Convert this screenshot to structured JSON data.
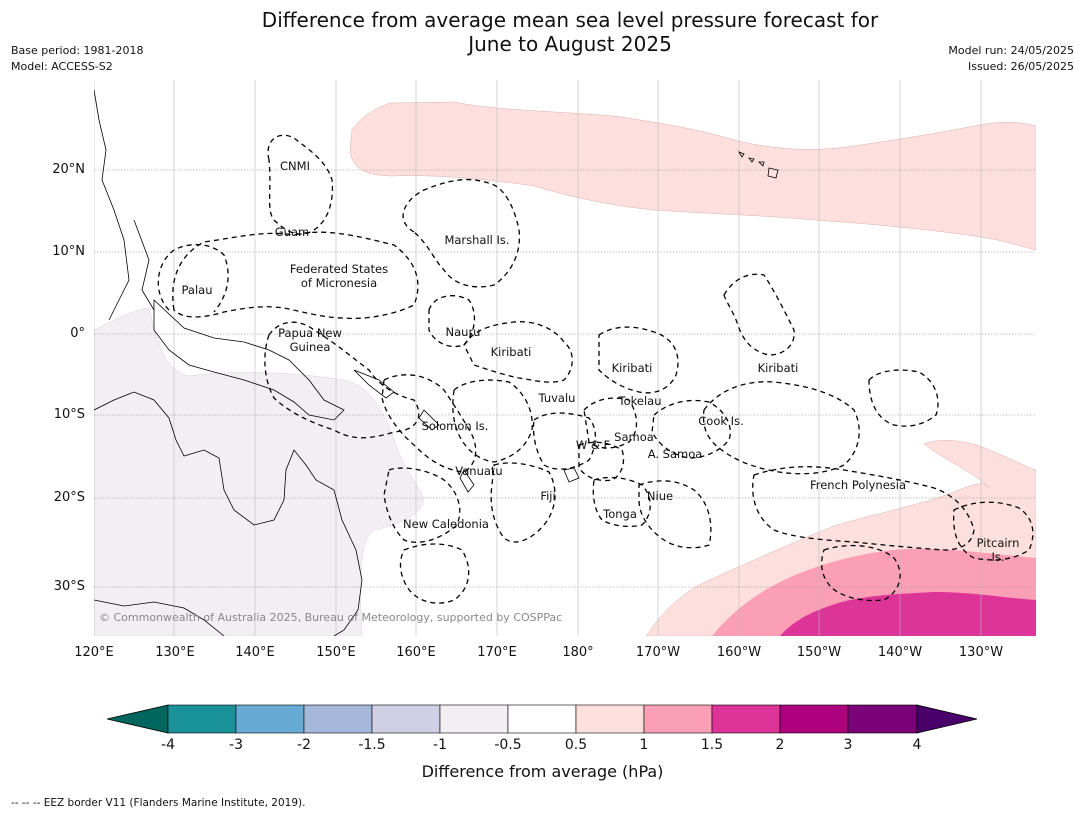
{
  "title_line1": "Difference from average mean sea level pressure forecast for",
  "title_line2": "June to August 2025",
  "meta_left": [
    "Base period: 1981-2018",
    "Model: ACCESS-S2"
  ],
  "meta_right": [
    "Model run: 24/05/2025",
    "Issued: 26/05/2025"
  ],
  "map": {
    "longitude_labels": [
      "120°E",
      "130°E",
      "140°E",
      "150°E",
      "160°E",
      "170°E",
      "180°",
      "170°W",
      "160°W",
      "150°W",
      "140°W",
      "130°W"
    ],
    "latitude_labels": [
      "20°N",
      "10°N",
      "0°",
      "10°S",
      "20°S",
      "30°S"
    ],
    "place_labels": [
      "CNMI",
      "Guam",
      "Marshall Is.",
      "Palau",
      "Federated States",
      "of Micronesia",
      "Papua New",
      "Guinea",
      "Nauru",
      "Kiribati",
      "Kiribati",
      "Kiribati",
      "Tuvalu",
      "Tokelau",
      "Solomon Is.",
      "W & F",
      "Samoa",
      "A. Samoa",
      "Cook Is.",
      "Vanuatu",
      "Fiji",
      "Niue",
      "French Polynesia",
      "Tonga",
      "New Caledonia",
      "Pitcairn",
      "Is."
    ],
    "copyright": "© Commonwealth of Australia 2025, Bureau of Meteorology, supported by COSPPac"
  },
  "colorbar": {
    "colors": [
      "#1a9299",
      "#67abd5",
      "#a6b8d9",
      "#cfcfe5",
      "#f3eef4",
      "#ffffff",
      "#fde0dd",
      "#fa9fb5",
      "#dd3497",
      "#ae017e",
      "#7a0177"
    ],
    "low_extension_color": "#01665e",
    "high_extension_color": "#49006a",
    "tick_labels": [
      "-4",
      "-3",
      "-2",
      "-1.5",
      "-1",
      "-0.5",
      "0.5",
      "1",
      "1.5",
      "2",
      "3",
      "4"
    ],
    "label": "Difference from average (hPa)"
  },
  "footnote": "--  --  -- EEZ border V11 (Flanders Marine Institute, 2019)."
}
